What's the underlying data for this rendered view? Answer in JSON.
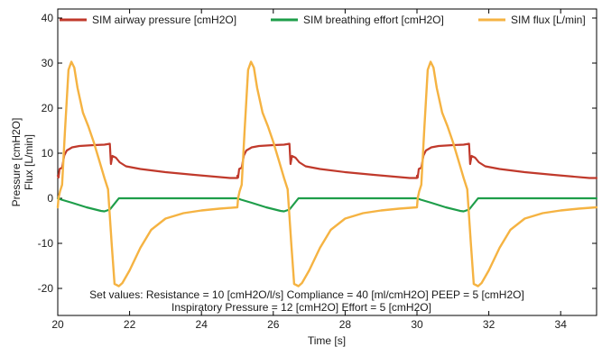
{
  "chart_data": {
    "type": "line",
    "xlabel": "Time [s]",
    "ylabel_lines": [
      "Pressure [cmH2O]",
      "Flux [L/min]"
    ],
    "xlim": [
      20,
      35
    ],
    "ylim": [
      -26,
      42
    ],
    "xticks": [
      20,
      22,
      24,
      26,
      28,
      30,
      32,
      34
    ],
    "yticks": [
      -20,
      -10,
      0,
      10,
      20,
      30,
      40
    ],
    "legend_position": "top",
    "series": [
      {
        "name": "SIM airway pressure [cmH2O]",
        "color": "#c0392b",
        "cycle_points": [
          [
            0.0,
            5.0
          ],
          [
            0.02,
            4.6
          ],
          [
            0.05,
            6.5
          ],
          [
            0.12,
            6.8
          ],
          [
            0.18,
            9.5
          ],
          [
            0.25,
            10.6
          ],
          [
            0.4,
            11.3
          ],
          [
            0.6,
            11.6
          ],
          [
            1.0,
            11.8
          ],
          [
            1.3,
            11.9
          ],
          [
            1.45,
            12.1
          ],
          [
            1.48,
            7.6
          ],
          [
            1.52,
            9.4
          ],
          [
            1.62,
            9.0
          ],
          [
            1.72,
            8.0
          ],
          [
            1.9,
            7.1
          ],
          [
            2.3,
            6.5
          ],
          [
            3.0,
            5.8
          ],
          [
            3.8,
            5.2
          ],
          [
            4.8,
            4.5
          ],
          [
            5.0,
            4.5
          ]
        ]
      },
      {
        "name": "SIM breathing effort [cmH2O]",
        "color": "#1e9e4a",
        "cycle_points": [
          [
            0.0,
            0.0
          ],
          [
            0.1,
            -0.3
          ],
          [
            0.4,
            -1.0
          ],
          [
            0.8,
            -2.0
          ],
          [
            1.2,
            -2.8
          ],
          [
            1.3,
            -2.9
          ],
          [
            1.45,
            -2.5
          ],
          [
            1.7,
            0.0
          ],
          [
            5.0,
            0.0
          ]
        ]
      },
      {
        "name": "SIM flux [L/min]",
        "color": "#f5b342",
        "cycle_points": [
          [
            0.0,
            -2.0
          ],
          [
            0.02,
            0.0
          ],
          [
            0.06,
            1.5
          ],
          [
            0.12,
            3.0
          ],
          [
            0.2,
            15.0
          ],
          [
            0.3,
            28.5
          ],
          [
            0.38,
            30.3
          ],
          [
            0.46,
            29.0
          ],
          [
            0.55,
            24.5
          ],
          [
            0.7,
            19.0
          ],
          [
            0.85,
            16.0
          ],
          [
            1.0,
            12.5
          ],
          [
            1.15,
            8.5
          ],
          [
            1.3,
            4.5
          ],
          [
            1.4,
            2.0
          ],
          [
            1.5,
            -10.0
          ],
          [
            1.58,
            -19.0
          ],
          [
            1.7,
            -19.5
          ],
          [
            1.8,
            -18.8
          ],
          [
            2.0,
            -16.0
          ],
          [
            2.3,
            -11.0
          ],
          [
            2.6,
            -7.0
          ],
          [
            3.0,
            -4.5
          ],
          [
            3.5,
            -3.3
          ],
          [
            4.0,
            -2.7
          ],
          [
            4.5,
            -2.3
          ],
          [
            5.0,
            -2.0
          ]
        ]
      }
    ],
    "cycle_starts": [
      20,
      25,
      30
    ],
    "annotations": {
      "line1": "Set values: Resistance = 10 [cmH2O/l/s]     Compliance = 40 [ml/cmH2O]     PEEP = 5 [cmH2O]",
      "line2": "Inspiratory Pressure = 12 [cmH2O]        Effort = 5 [cmH2O]"
    }
  }
}
